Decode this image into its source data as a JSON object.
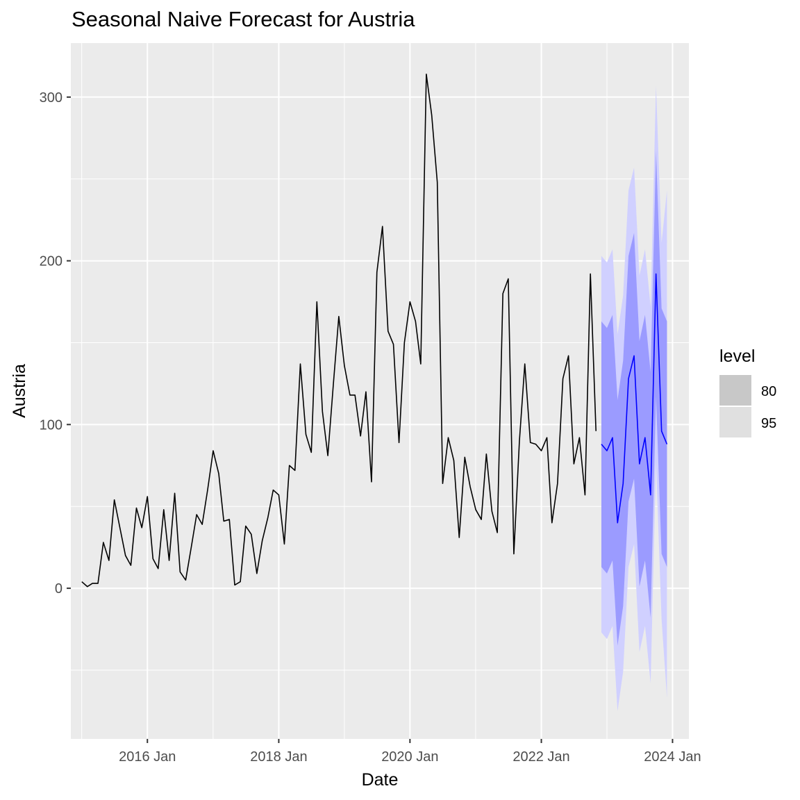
{
  "chart_data": {
    "type": "line",
    "title": "Seasonal Naive Forecast for Austria",
    "xlabel": "Date",
    "ylabel": "Austria",
    "x_range": [
      "2014-11-01",
      "2024-04-01"
    ],
    "ylim": [
      -92,
      333
    ],
    "x_ticks": [
      {
        "date": "2016-01-01",
        "label": "2016 Jan"
      },
      {
        "date": "2018-01-01",
        "label": "2018 Jan"
      },
      {
        "date": "2020-01-01",
        "label": "2020 Jan"
      },
      {
        "date": "2022-01-01",
        "label": "2022 Jan"
      },
      {
        "date": "2024-01-01",
        "label": "2024 Jan"
      }
    ],
    "y_ticks": [
      0,
      100,
      200,
      300
    ],
    "y_minor_ticks": [
      -50,
      50,
      150,
      250
    ],
    "grid": true,
    "series": [
      {
        "color": "#000000",
        "start": "2015-01",
        "values": [
          4,
          1,
          3,
          3,
          28,
          17,
          54,
          37,
          20,
          14,
          49,
          37,
          56,
          18,
          12,
          48,
          17,
          58,
          10,
          5,
          25,
          45,
          39,
          60,
          84,
          70,
          41,
          42,
          2,
          4,
          38,
          33,
          9,
          29,
          43,
          60,
          57,
          27,
          75,
          72,
          137,
          94,
          83,
          175,
          108,
          81,
          125,
          166,
          136,
          118,
          118,
          93,
          120,
          65,
          193,
          221,
          157,
          149,
          89,
          150,
          175,
          163,
          137,
          314,
          289,
          248,
          64,
          92,
          78,
          31,
          80,
          62,
          48,
          42,
          82,
          47,
          34,
          180,
          189,
          21,
          90,
          137,
          89,
          88,
          84,
          92,
          40,
          64,
          128,
          142,
          76,
          92,
          57,
          192,
          96
        ]
      },
      {
        "color": "#0000ff",
        "start": "2022-12",
        "values": [
          88,
          84,
          92,
          40,
          64,
          128,
          142,
          76,
          92,
          57,
          192,
          96,
          88
        ],
        "lower80": [
          13,
          9,
          17,
          -35,
          -11,
          53,
          67,
          1,
          17,
          -18,
          117,
          21,
          13
        ],
        "upper80": [
          163,
          159,
          167,
          115,
          139,
          203,
          217,
          151,
          167,
          132,
          267,
          171,
          163
        ],
        "lower95": [
          -27,
          -31,
          -23,
          -75,
          -51,
          13,
          27,
          -39,
          -23,
          -58,
          77,
          -19,
          -67
        ],
        "upper95": [
          203,
          199,
          207,
          155,
          179,
          243,
          257,
          191,
          207,
          172,
          307,
          211,
          243
        ]
      }
    ],
    "legend": {
      "title": "level",
      "position": "right",
      "items": [
        {
          "label": "80",
          "color": "#c8c8c8"
        },
        {
          "label": "95",
          "color": "#e0e0e0"
        }
      ]
    },
    "colors": {
      "panel": "#ebebeb",
      "grid": "#ffffff",
      "band80": "#9b9bff",
      "band95": "#d0d0ff"
    }
  }
}
